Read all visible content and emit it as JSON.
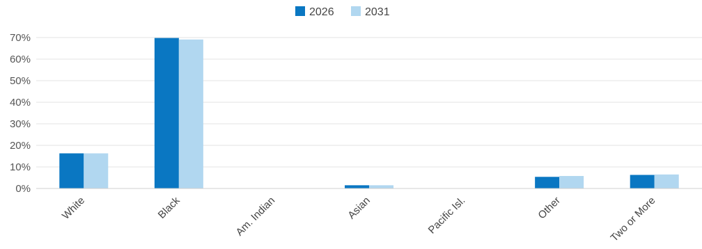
{
  "chart_data": {
    "type": "bar",
    "categories": [
      "White",
      "Black",
      "Am. Indian",
      "Asian",
      "Pacific Isl.",
      "Other",
      "Two or More"
    ],
    "series": [
      {
        "name": "2026",
        "color": "#0a77c2",
        "values": [
          16.3,
          69.8,
          0.1,
          1.5,
          0.0,
          5.4,
          6.3
        ]
      },
      {
        "name": "2031",
        "color": "#b1d7f0",
        "values": [
          16.3,
          69.1,
          0.1,
          1.5,
          0.0,
          5.8,
          6.5
        ]
      }
    ],
    "ylim": [
      0,
      70
    ],
    "yticks": [
      0,
      10,
      20,
      30,
      40,
      50,
      60,
      70
    ],
    "ytick_labels": [
      "0%",
      "10%",
      "20%",
      "30%",
      "40%",
      "50%",
      "60%",
      "70%"
    ],
    "xlabel": "",
    "ylabel": "",
    "legend_position": "top-center",
    "grid": true
  }
}
